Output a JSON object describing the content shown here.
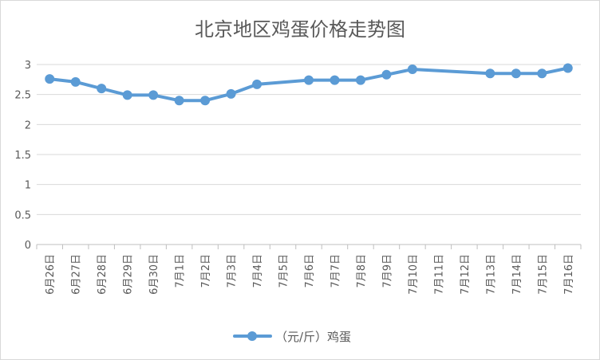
{
  "chart_data": {
    "type": "line",
    "title": "北京地区鸡蛋价格走势图",
    "xlabel": "",
    "ylabel": "",
    "ylim": [
      0,
      3
    ],
    "yticks": [
      "0",
      "0.5",
      "1",
      "1.5",
      "2",
      "2.5",
      "3"
    ],
    "grid": true,
    "legend_position": "bottom",
    "categories": [
      "6月26日",
      "6月27日",
      "6月28日",
      "6月29日",
      "6月30日",
      "7月1日",
      "7月2日",
      "7月3日",
      "7月4日",
      "7月5日",
      "7月6日",
      "7月7日",
      "7月8日",
      "7月9日",
      "7月10日",
      "7月11日",
      "7月12日",
      "7月13日",
      "7月14日",
      "7月15日",
      "7月16日"
    ],
    "series": [
      {
        "name": "（元/斤）鸡蛋",
        "color": "#5b9bd5",
        "values": [
          2.76,
          2.71,
          2.6,
          2.49,
          2.49,
          2.4,
          2.4,
          2.51,
          2.67,
          null,
          2.74,
          2.74,
          2.74,
          2.83,
          2.92,
          null,
          null,
          2.85,
          2.85,
          2.85,
          2.94
        ]
      }
    ]
  }
}
